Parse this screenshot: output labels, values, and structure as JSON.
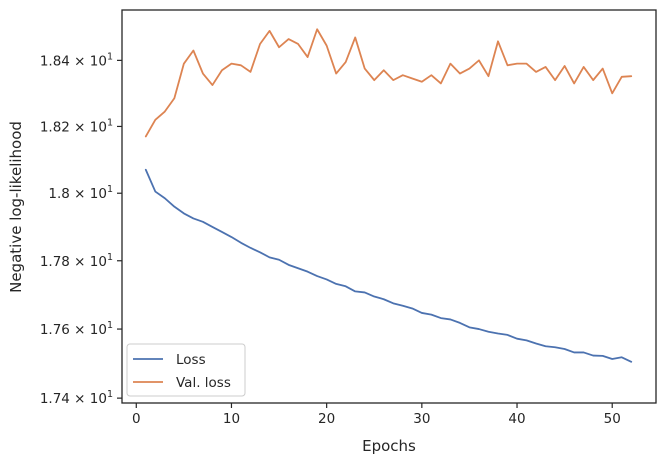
{
  "chart_data": {
    "type": "line",
    "xlabel": "Epochs",
    "ylabel": "Negative log-likelihood",
    "xlim": [
      -1.5,
      54.6
    ],
    "ylim": [
      17.386,
      18.554
    ],
    "yscale": "log",
    "grid": false,
    "legend_position": "lower-left",
    "x_ticks": [
      0,
      10,
      20,
      30,
      40,
      50
    ],
    "y_ticks": [
      {
        "value": 17.4,
        "mantissa": "1.74"
      },
      {
        "value": 17.6,
        "mantissa": "1.76"
      },
      {
        "value": 17.8,
        "mantissa": "1.78"
      },
      {
        "value": 18.0,
        "mantissa": "1.8"
      },
      {
        "value": 18.2,
        "mantissa": "1.82"
      },
      {
        "value": 18.4,
        "mantissa": "1.84"
      }
    ],
    "y_tick_base": "10",
    "y_tick_exponent": "1",
    "y_tick_times": "×",
    "x": [
      1,
      2,
      3,
      4,
      5,
      6,
      7,
      8,
      9,
      10,
      11,
      12,
      13,
      14,
      15,
      16,
      17,
      18,
      19,
      20,
      21,
      22,
      23,
      24,
      25,
      26,
      27,
      28,
      29,
      30,
      31,
      32,
      33,
      34,
      35,
      36,
      37,
      38,
      39,
      40,
      41,
      42,
      43,
      44,
      45,
      46,
      47,
      48,
      49,
      50,
      51,
      52
    ],
    "series": [
      {
        "name": "Loss",
        "color": "#4c72b0",
        "values": [
          18.07,
          18.005,
          17.985,
          17.96,
          17.94,
          17.925,
          17.915,
          17.9,
          17.885,
          17.87,
          17.853,
          17.838,
          17.825,
          17.81,
          17.803,
          17.788,
          17.778,
          17.768,
          17.755,
          17.745,
          17.732,
          17.725,
          17.71,
          17.707,
          17.695,
          17.687,
          17.675,
          17.668,
          17.66,
          17.647,
          17.642,
          17.632,
          17.628,
          17.618,
          17.605,
          17.6,
          17.592,
          17.587,
          17.583,
          17.572,
          17.567,
          17.558,
          17.55,
          17.547,
          17.542,
          17.532,
          17.532,
          17.523,
          17.522,
          17.513,
          17.518,
          17.505
        ]
      },
      {
        "name": "Val. loss",
        "color": "#dd8452",
        "values": [
          18.17,
          18.22,
          18.245,
          18.285,
          18.39,
          18.43,
          18.36,
          18.325,
          18.37,
          18.39,
          18.385,
          18.365,
          18.45,
          18.49,
          18.44,
          18.465,
          18.45,
          18.41,
          18.495,
          18.445,
          18.36,
          18.395,
          18.47,
          18.375,
          18.34,
          18.37,
          18.34,
          18.355,
          18.345,
          18.335,
          18.355,
          18.33,
          18.39,
          18.36,
          18.375,
          18.4,
          18.352,
          18.458,
          18.385,
          18.39,
          18.39,
          18.365,
          18.38,
          18.34,
          18.383,
          18.33,
          18.38,
          18.34,
          18.375,
          18.3,
          18.35,
          18.352
        ]
      }
    ]
  }
}
